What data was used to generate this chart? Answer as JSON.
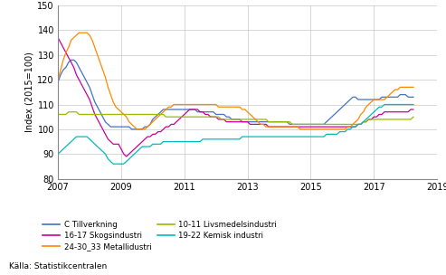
{
  "ylabel": "Index (2015=100)",
  "ylim": [
    80,
    150
  ],
  "yticks": [
    80,
    90,
    100,
    110,
    120,
    130,
    140,
    150
  ],
  "xlim": [
    2007.0,
    2019.0
  ],
  "xticks": [
    2007,
    2009,
    2011,
    2013,
    2015,
    2017,
    2019
  ],
  "source": "Källa: Statistikcentralen",
  "legend": [
    {
      "label": "C Tillverkning",
      "color": "#4472c4"
    },
    {
      "label": "16-17 Skogsindustri",
      "color": "#cc0099"
    },
    {
      "label": "24-30_33 Metallidustri",
      "color": "#ff8800"
    },
    {
      "label": "10-11 Livsmedelsindustri",
      "color": "#99bb00"
    },
    {
      "label": "19-22 Kemisk industri",
      "color": "#00bbbb"
    }
  ],
  "series": {
    "C Tillverkning": [
      119,
      122,
      124,
      125,
      127,
      128,
      128,
      127,
      125,
      123,
      121,
      119,
      117,
      114,
      111,
      109,
      107,
      105,
      103,
      102,
      101,
      101,
      101,
      101,
      101,
      101,
      101,
      101,
      100,
      100,
      100,
      100,
      100,
      101,
      101,
      102,
      104,
      105,
      106,
      107,
      108,
      108,
      108,
      108,
      108,
      108,
      108,
      108,
      108,
      108,
      108,
      108,
      108,
      107,
      107,
      107,
      107,
      107,
      107,
      107,
      106,
      106,
      106,
      106,
      105,
      105,
      104,
      104,
      104,
      104,
      103,
      103,
      103,
      103,
      103,
      103,
      103,
      103,
      103,
      103,
      103,
      103,
      103,
      103,
      103,
      103,
      103,
      103,
      102,
      102,
      102,
      102,
      102,
      102,
      102,
      102,
      102,
      102,
      102,
      102,
      102,
      102,
      103,
      104,
      105,
      106,
      107,
      108,
      109,
      110,
      111,
      112,
      113,
      113,
      112,
      112,
      112,
      112,
      112,
      112,
      112,
      112,
      112,
      113,
      113,
      113,
      113,
      113,
      113,
      113,
      114,
      114,
      114,
      113,
      113,
      113
    ],
    "16-17 Skogsindustri": [
      137,
      135,
      133,
      131,
      129,
      127,
      125,
      122,
      120,
      118,
      116,
      114,
      112,
      109,
      106,
      104,
      102,
      100,
      98,
      96,
      95,
      94,
      94,
      94,
      92,
      90,
      89,
      90,
      91,
      92,
      93,
      94,
      95,
      96,
      97,
      97,
      98,
      98,
      99,
      99,
      100,
      101,
      101,
      102,
      102,
      103,
      104,
      105,
      106,
      107,
      108,
      108,
      108,
      108,
      107,
      107,
      106,
      106,
      105,
      105,
      105,
      104,
      104,
      104,
      103,
      103,
      103,
      103,
      103,
      103,
      103,
      103,
      103,
      102,
      102,
      102,
      102,
      102,
      102,
      102,
      101,
      101,
      101,
      101,
      101,
      101,
      101,
      101,
      101,
      101,
      101,
      101,
      101,
      101,
      101,
      101,
      101,
      101,
      101,
      101,
      101,
      101,
      101,
      101,
      101,
      101,
      101,
      101,
      101,
      101,
      101,
      101,
      101,
      101,
      102,
      102,
      103,
      103,
      104,
      104,
      105,
      105,
      106,
      106,
      107,
      107,
      107,
      107,
      107,
      107,
      107,
      107,
      107,
      107,
      108,
      108
    ],
    "24-30_33 Metallidustri": [
      120,
      124,
      128,
      131,
      133,
      136,
      137,
      138,
      139,
      139,
      139,
      139,
      138,
      136,
      133,
      130,
      127,
      124,
      121,
      117,
      114,
      111,
      109,
      108,
      107,
      106,
      105,
      103,
      102,
      101,
      100,
      100,
      100,
      100,
      101,
      102,
      103,
      104,
      105,
      106,
      107,
      108,
      109,
      109,
      110,
      110,
      110,
      110,
      110,
      110,
      110,
      110,
      110,
      110,
      110,
      110,
      110,
      110,
      110,
      110,
      110,
      109,
      109,
      109,
      109,
      109,
      109,
      109,
      109,
      109,
      108,
      108,
      107,
      106,
      105,
      104,
      103,
      102,
      102,
      101,
      101,
      101,
      101,
      101,
      101,
      101,
      101,
      101,
      101,
      101,
      101,
      101,
      100,
      100,
      100,
      100,
      100,
      100,
      100,
      100,
      100,
      100,
      100,
      100,
      100,
      100,
      100,
      100,
      100,
      100,
      101,
      101,
      102,
      103,
      104,
      106,
      107,
      109,
      110,
      111,
      112,
      112,
      112,
      112,
      112,
      113,
      114,
      115,
      116,
      116,
      117,
      117,
      117,
      117,
      117,
      117
    ],
    "10-11 Livsmedelsindustri": [
      106,
      106,
      106,
      106,
      107,
      107,
      107,
      107,
      106,
      106,
      106,
      106,
      106,
      106,
      106,
      106,
      106,
      106,
      106,
      106,
      106,
      106,
      106,
      106,
      106,
      106,
      106,
      106,
      106,
      106,
      106,
      106,
      106,
      106,
      106,
      106,
      106,
      106,
      106,
      106,
      106,
      105,
      105,
      105,
      105,
      105,
      105,
      105,
      105,
      105,
      105,
      105,
      105,
      105,
      105,
      105,
      105,
      105,
      105,
      105,
      105,
      105,
      104,
      104,
      104,
      104,
      104,
      104,
      104,
      104,
      104,
      104,
      104,
      104,
      104,
      104,
      104,
      104,
      104,
      104,
      103,
      103,
      103,
      103,
      103,
      103,
      103,
      103,
      103,
      102,
      102,
      102,
      102,
      102,
      102,
      102,
      102,
      102,
      102,
      102,
      102,
      102,
      102,
      102,
      102,
      102,
      102,
      102,
      102,
      102,
      102,
      102,
      102,
      102,
      102,
      102,
      103,
      103,
      104,
      104,
      104,
      104,
      104,
      104,
      104,
      104,
      104,
      104,
      104,
      104,
      104,
      104,
      104,
      104,
      104,
      105
    ],
    "19-22 Kemisk industri": [
      90,
      91,
      92,
      93,
      94,
      95,
      96,
      97,
      97,
      97,
      97,
      97,
      96,
      95,
      94,
      93,
      92,
      91,
      90,
      88,
      87,
      86,
      86,
      86,
      86,
      86,
      87,
      88,
      89,
      90,
      91,
      92,
      93,
      93,
      93,
      93,
      94,
      94,
      94,
      94,
      95,
      95,
      95,
      95,
      95,
      95,
      95,
      95,
      95,
      95,
      95,
      95,
      95,
      95,
      95,
      96,
      96,
      96,
      96,
      96,
      96,
      96,
      96,
      96,
      96,
      96,
      96,
      96,
      96,
      96,
      97,
      97,
      97,
      97,
      97,
      97,
      97,
      97,
      97,
      97,
      97,
      97,
      97,
      97,
      97,
      97,
      97,
      97,
      97,
      97,
      97,
      97,
      97,
      97,
      97,
      97,
      97,
      97,
      97,
      97,
      97,
      97,
      98,
      98,
      98,
      98,
      98,
      99,
      99,
      99,
      100,
      100,
      101,
      101,
      102,
      102,
      103,
      104,
      105,
      106,
      107,
      108,
      109,
      109,
      110,
      110,
      110,
      110,
      110,
      110,
      110,
      110,
      110,
      110,
      110,
      110
    ]
  }
}
